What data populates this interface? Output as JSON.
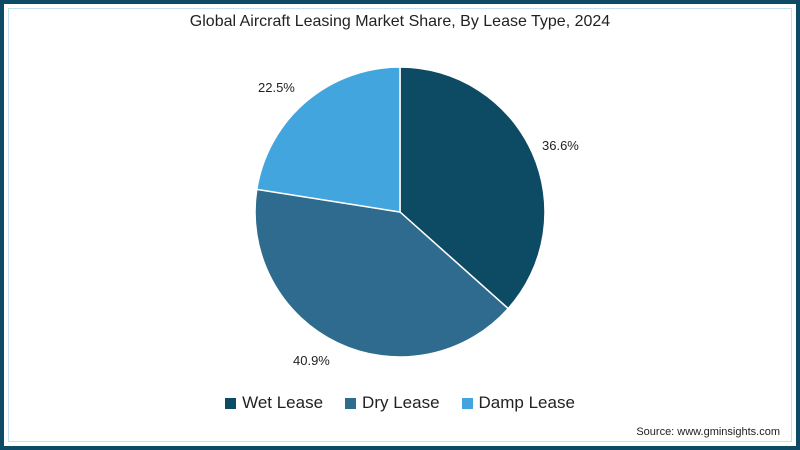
{
  "title": "Global Aircraft Leasing Market Share, By Lease Type, 2024",
  "source": "Source: www.gminsights.com",
  "chart_data": {
    "type": "pie",
    "title": "Global Aircraft Leasing Market Share, By Lease Type, 2024",
    "categories": [
      "Wet Lease",
      "Dry Lease",
      "Damp Lease"
    ],
    "values": [
      36.6,
      40.9,
      22.5
    ],
    "labels": [
      "36.6%",
      "40.9%",
      "22.5%"
    ],
    "colors": [
      "#0d4a63",
      "#2e6b8e",
      "#42a5dd"
    ],
    "legend_position": "bottom",
    "start_angle": "12 o'clock, clockwise"
  },
  "legend": [
    {
      "label": "Wet Lease",
      "color": "#0d4a63"
    },
    {
      "label": "Dry Lease",
      "color": "#2e6b8e"
    },
    {
      "label": "Damp Lease",
      "color": "#42a5dd"
    }
  ]
}
